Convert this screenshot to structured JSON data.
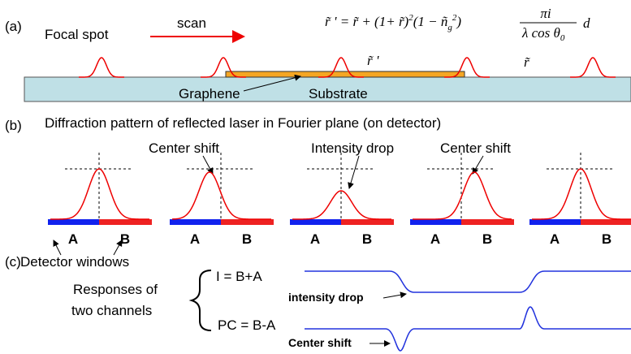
{
  "panel_a": {
    "label": "(a)",
    "focal_spot": "Focal spot",
    "scan": "scan",
    "r_prime": "r̃ '",
    "r": "r̃",
    "graphene": "Graphene",
    "substrate": "Substrate",
    "formula": [
      "r̃ ' = r̃ + (1+ r̃)",
      "2",
      "(1 − ñ",
      "g",
      "2",
      ")",
      "πi",
      "λ cos θ",
      "0",
      "d"
    ]
  },
  "panel_b": {
    "label": "(b)",
    "title": "Diffraction pattern of reflected laser in Fourier plane (on detector)",
    "center_shift_left": "Center shift",
    "intensity_drop": "Intensity drop",
    "center_shift_right": "Center shift",
    "windows": [
      [
        "A",
        "B"
      ],
      [
        "A",
        "B"
      ],
      [
        "A",
        "B"
      ],
      [
        "A",
        "B"
      ],
      [
        "A",
        "B"
      ]
    ]
  },
  "panel_c": {
    "label": "(c)",
    "detector_windows": "Detector windows",
    "responses_line1": "Responses of",
    "responses_line2": "two channels",
    "i_channel": "I  = B+A",
    "pc_channel": "PC = B-A",
    "intensity_drop": "intensity drop",
    "center_shift": "Center shift"
  }
}
